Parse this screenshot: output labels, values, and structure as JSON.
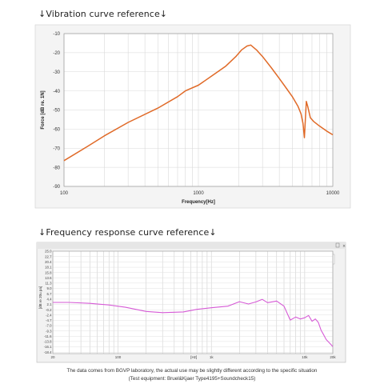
{
  "chart_data": [
    {
      "type": "line",
      "title": "↓Vibration curve reference↓",
      "xlabel": "Frequency[Hz]",
      "ylabel": "Force [dB re. 1N]",
      "x_scale": "log",
      "xlim": [
        100,
        10000
      ],
      "ylim": [
        -90,
        -10
      ],
      "x_ticks": [
        "100",
        "1000",
        "10000"
      ],
      "y_ticks": [
        "-10",
        "-20",
        "-30",
        "-40",
        "-50",
        "-60",
        "-70",
        "-80",
        "-90"
      ],
      "grid": true,
      "line_color": "#e06a28",
      "series": [
        {
          "x": [
            100,
            150,
            200,
            300,
            500,
            700,
            800,
            1000,
            1300,
            1600,
            1900,
            2100,
            2300,
            2450,
            2700,
            3000,
            3500,
            4000,
            4500,
            5000,
            5500,
            5800,
            6000,
            6150,
            6250,
            6350,
            6500,
            6800,
            7200,
            8000,
            9000,
            10000
          ],
          "y": [
            -76.5,
            -69,
            -63.5,
            -56.5,
            -49,
            -43,
            -40,
            -37,
            -31.5,
            -27,
            -22,
            -18.5,
            -16.5,
            -16,
            -18.5,
            -22,
            -28,
            -33.5,
            -38.5,
            -43,
            -48,
            -52,
            -57,
            -64.5,
            -55,
            -45.5,
            -48,
            -54,
            -56,
            -58.5,
            -61,
            -63
          ]
        }
      ]
    },
    {
      "type": "line",
      "title": "↓Frequency response curve reference↓",
      "xlabel": "[Hz]",
      "ylabel": "[dB re 20u pa]",
      "x_scale": "log",
      "xlim": [
        20,
        20000
      ],
      "ylim": [
        -19,
        25
      ],
      "x_ticks": [
        "20",
        "100",
        "1k",
        "10k",
        "20k"
      ],
      "y_ticks": [
        "25.0",
        "22.7",
        "20.4",
        "18.1",
        "15.8",
        "13.6",
        "11.3",
        "9.0",
        "6.7",
        "4.4",
        "2.1",
        "-0.2",
        "-2.4",
        "-4.7",
        "-7.0",
        "-9.3",
        "-11.6",
        "-13.8",
        "-16.1",
        "-18.4"
      ],
      "grid": true,
      "line_color": "#d65ad6",
      "series": [
        {
          "x": [
            20,
            30,
            50,
            80,
            120,
            200,
            300,
            500,
            700,
            1000,
            1500,
            2000,
            2500,
            3000,
            3500,
            4000,
            5000,
            6000,
            7000,
            8000,
            9000,
            10000,
            11000,
            12000,
            13000,
            14000,
            15000,
            16000,
            17000,
            18000,
            19000,
            20000
          ],
          "y": [
            3,
            3,
            2.6,
            1.9,
            0.9,
            -0.9,
            -1.4,
            -1.1,
            0,
            0.7,
            1.4,
            3.3,
            2.3,
            3.2,
            4.3,
            2.9,
            3.6,
            1.4,
            -4.6,
            -3.3,
            -4.1,
            -3.6,
            -2.6,
            -5.1,
            -4.1,
            -5.6,
            -9,
            -11,
            -13,
            -14,
            -15,
            -16
          ]
        }
      ]
    }
  ],
  "footnote": {
    "line1": "The data comes from BGVP laboratory, the actual use may be slightly different according to the specific situation",
    "line2": "(Test equipment: Bruel&Kjaer Type4195+Soundcheck15)"
  }
}
